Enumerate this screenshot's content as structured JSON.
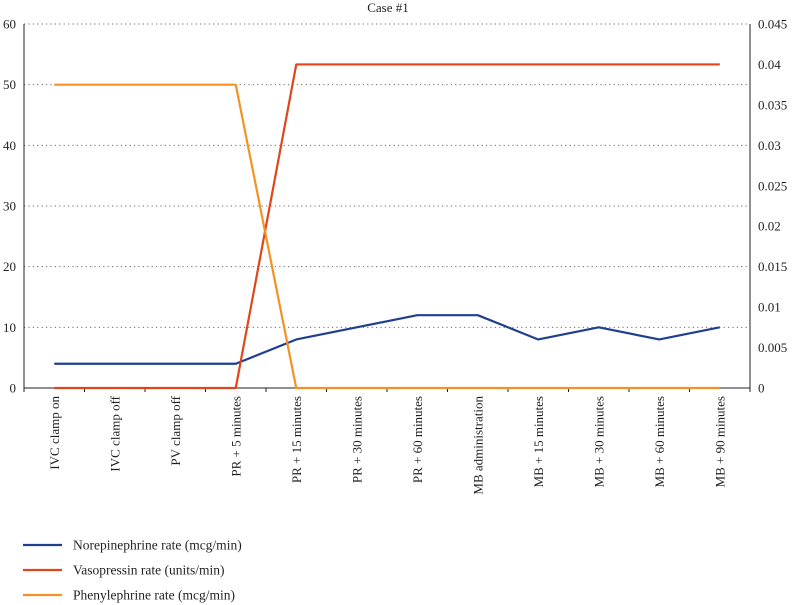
{
  "chart_data": {
    "type": "line",
    "title": "Case #1",
    "categories": [
      "IVC clamp on",
      "IVC clamp off",
      "PV clamp off",
      "PR + 5 minutes",
      "PR + 15 minutes",
      "PR + 30 minutes",
      "PR + 60 minutes",
      "MB administration",
      "MB + 15 minutes",
      "MB + 30 minutes",
      "MB + 60 minutes",
      "MB + 90 minutes"
    ],
    "y_left": {
      "ylim": [
        0,
        60
      ],
      "ticks": [
        "0",
        "10",
        "20",
        "30",
        "40",
        "50",
        "60"
      ],
      "tick_values": [
        0,
        10,
        20,
        30,
        40,
        50,
        60
      ]
    },
    "y_right": {
      "ylim": [
        0,
        0.045
      ],
      "ticks": [
        "0",
        "0.005",
        "0.01",
        "0.015",
        "0.02",
        "0.025",
        "0.03",
        "0.035",
        "0.04",
        "0.045"
      ],
      "tick_values": [
        0,
        0.005,
        0.01,
        0.015,
        0.02,
        0.025,
        0.03,
        0.035,
        0.04,
        0.045
      ]
    },
    "grid": "horizontal-dotted",
    "legend_position": "bottom-left",
    "series": [
      {
        "name": "Norepinephrine rate (mcg/min)",
        "axis": "left",
        "color": "#1f3f8f",
        "values": [
          4,
          4,
          4,
          4,
          8,
          10,
          12,
          12,
          8,
          10,
          8,
          10
        ]
      },
      {
        "name": "Vasopressin rate (units/min)",
        "axis": "right",
        "color": "#e0451b",
        "values": [
          0,
          0,
          0,
          0,
          0.04,
          0.04,
          0.04,
          0.04,
          0.04,
          0.04,
          0.04,
          0.04
        ]
      },
      {
        "name": "Phenylephrine rate (mcg/min)",
        "axis": "left",
        "color": "#f39223",
        "values": [
          50,
          50,
          50,
          50,
          0,
          0,
          0,
          0,
          0,
          0,
          0,
          0
        ]
      }
    ]
  }
}
